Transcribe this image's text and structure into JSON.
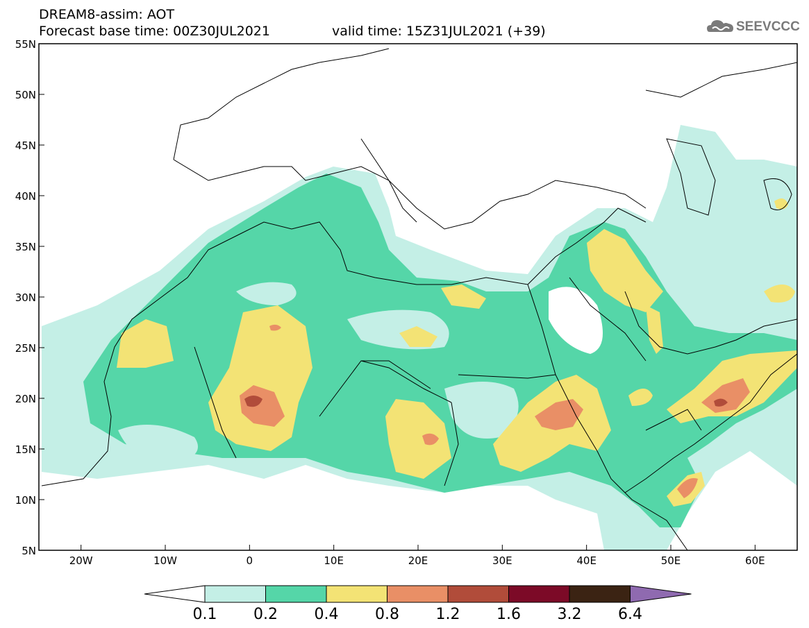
{
  "header": {
    "line1": "DREAM8-assim: AOT",
    "line2": "Forecast base time: 00Z30JUL2021",
    "valid": "valid time: 15Z31JUL2021 (+39)"
  },
  "logo": {
    "text": "SEEVCCC",
    "icon": "cloud-icon"
  },
  "map": {
    "lat_range": [
      5,
      55
    ],
    "lon_range": [
      -25,
      65
    ],
    "lat_ticks": [
      "55N",
      "50N",
      "45N",
      "40N",
      "35N",
      "30N",
      "25N",
      "20N",
      "15N",
      "10N",
      "5N"
    ],
    "lon_ticks": [
      "20W",
      "10W",
      "0",
      "10E",
      "20E",
      "30E",
      "40E",
      "50E",
      "60E"
    ]
  },
  "colorbar": {
    "labels": [
      "0.1",
      "0.2",
      "0.4",
      "0.8",
      "1.2",
      "1.6",
      "3.2",
      "6.4"
    ],
    "colors": [
      "#c4efe6",
      "#55d6a8",
      "#f3e375",
      "#e98f66",
      "#b14c3a",
      "#7c0a27",
      "#3b2313",
      "#8f6ab0"
    ]
  }
}
